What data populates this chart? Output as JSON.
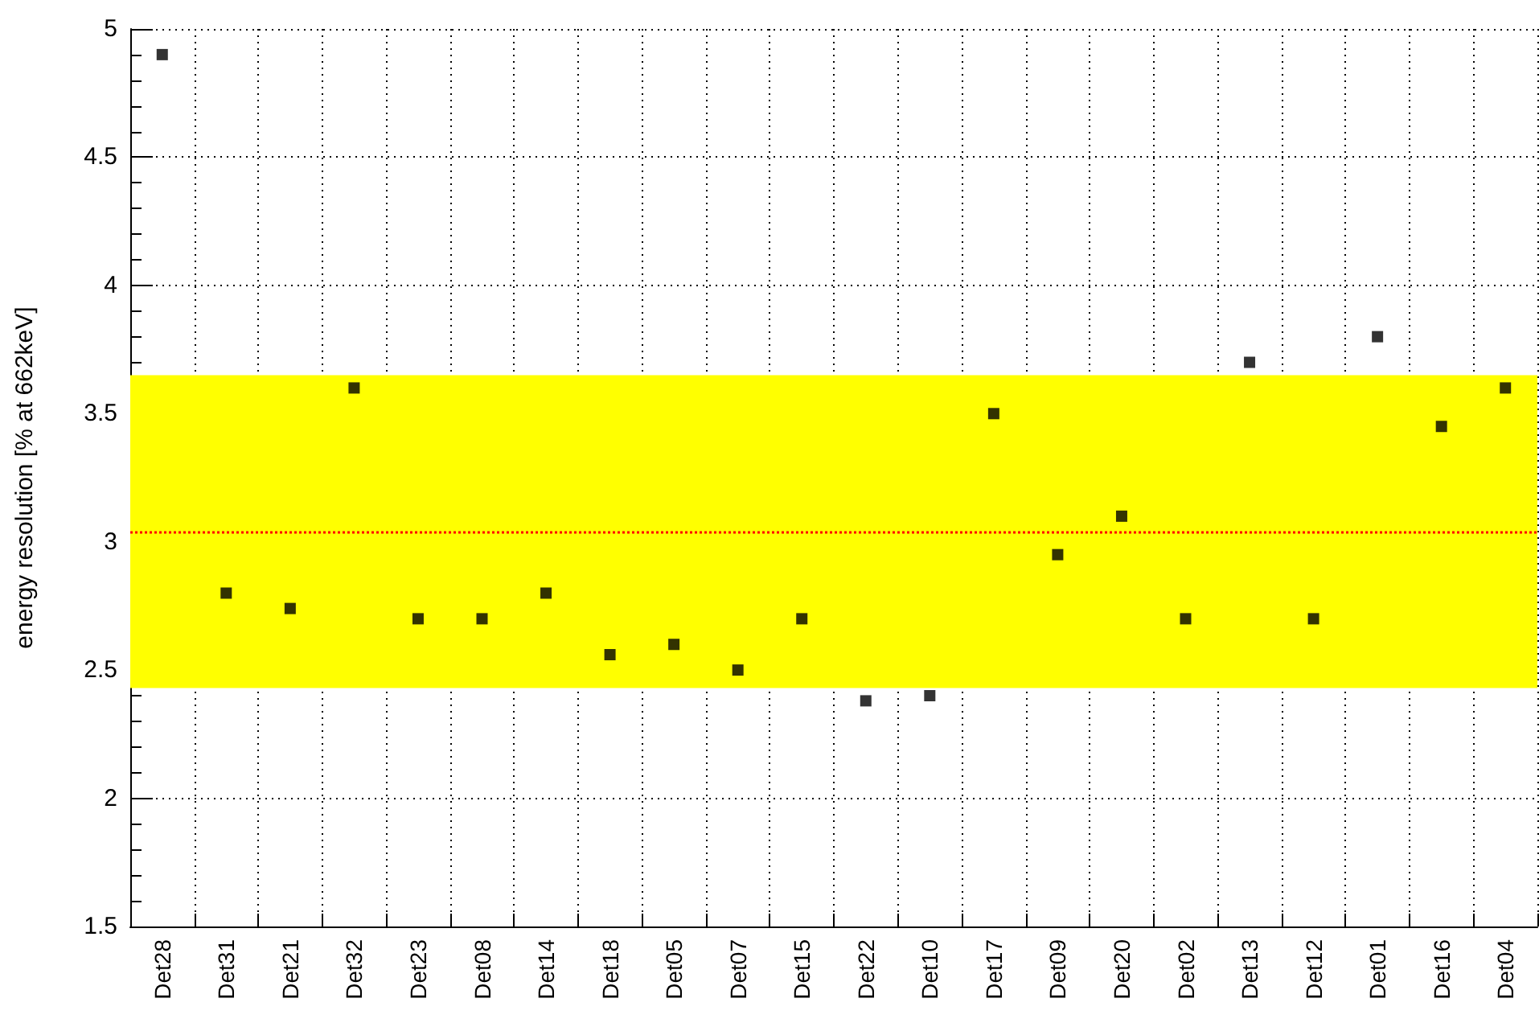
{
  "chart_data": {
    "type": "scatter",
    "ylabel": "energy resolution [% at 662keV]",
    "categories": [
      "Det28",
      "Det31",
      "Det21",
      "Det32",
      "Det23",
      "Det08",
      "Det14",
      "Det18",
      "Det05",
      "Det07",
      "Det15",
      "Det22",
      "Det10",
      "Det17",
      "Det09",
      "Det20",
      "Det02",
      "Det13",
      "Det12",
      "Det01",
      "Det16",
      "Det04"
    ],
    "series": [
      {
        "color": "#000000",
        "values": [
          4.9,
          2.8,
          2.74,
          3.6,
          2.7,
          2.7,
          2.8,
          2.56,
          2.6,
          2.5,
          2.7,
          2.38,
          2.4,
          3.5,
          2.95,
          3.1,
          2.7,
          3.7,
          2.7,
          3.8,
          3.45,
          3.6
        ]
      }
    ],
    "ylim": [
      1.5,
      5
    ],
    "yticks": [
      1.5,
      2,
      2.5,
      3,
      3.5,
      4,
      4.5,
      5
    ],
    "bands": [
      {
        "axis": "y",
        "from": 2.43,
        "to": 3.65,
        "color": "#ffff00"
      }
    ],
    "ref_lines": [
      {
        "axis": "y",
        "value": 3.04,
        "color": "#ff0000",
        "line_style": "dotted"
      }
    ],
    "grid": true,
    "marker": "square"
  }
}
